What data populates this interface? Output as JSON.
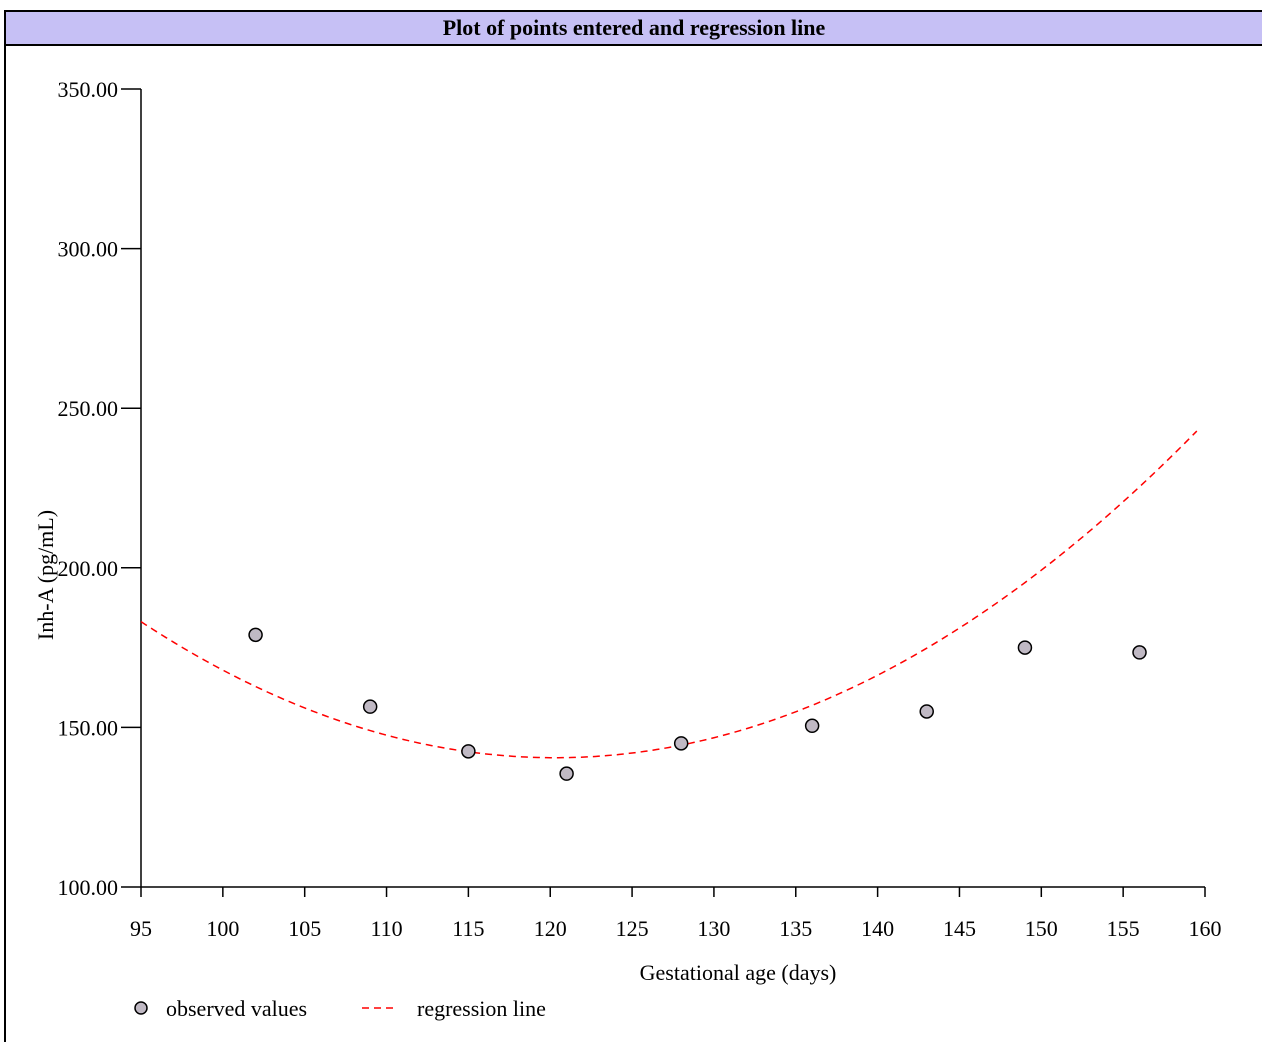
{
  "panel": {
    "title": "Plot of points entered and regression line"
  },
  "chart_data": {
    "type": "scatter",
    "title": "Plot of points entered and regression line",
    "xlabel": "Gestational age (days)",
    "ylabel": "Inh-A (pg/mL)",
    "xlim": [
      95,
      160
    ],
    "ylim": [
      100,
      350
    ],
    "x_ticks": [
      "95",
      "100",
      "105",
      "110",
      "115",
      "120",
      "125",
      "130",
      "135",
      "140",
      "145",
      "150",
      "155",
      "160"
    ],
    "y_ticks": [
      "100.00",
      "150.00",
      "200.00",
      "250.00",
      "300.00",
      "350.00"
    ],
    "grid": false,
    "legend_position": "bottom-left",
    "series": [
      {
        "name": "observed values",
        "kind": "points",
        "marker_color": "#c0b9c4",
        "x": [
          102,
          109,
          115,
          121,
          128,
          136,
          143,
          149,
          156
        ],
        "y": [
          179,
          156.5,
          142.5,
          135.5,
          145,
          150.5,
          155,
          175,
          173.5
        ]
      },
      {
        "name": "regression line",
        "kind": "quadratic-fit",
        "line_color": "#ff0000",
        "line_style": "dashed",
        "vertex_x": 120.3,
        "vertex_y": 140.5,
        "coef_a": 0.0666,
        "x_range": [
          95,
          159.5
        ]
      }
    ]
  }
}
